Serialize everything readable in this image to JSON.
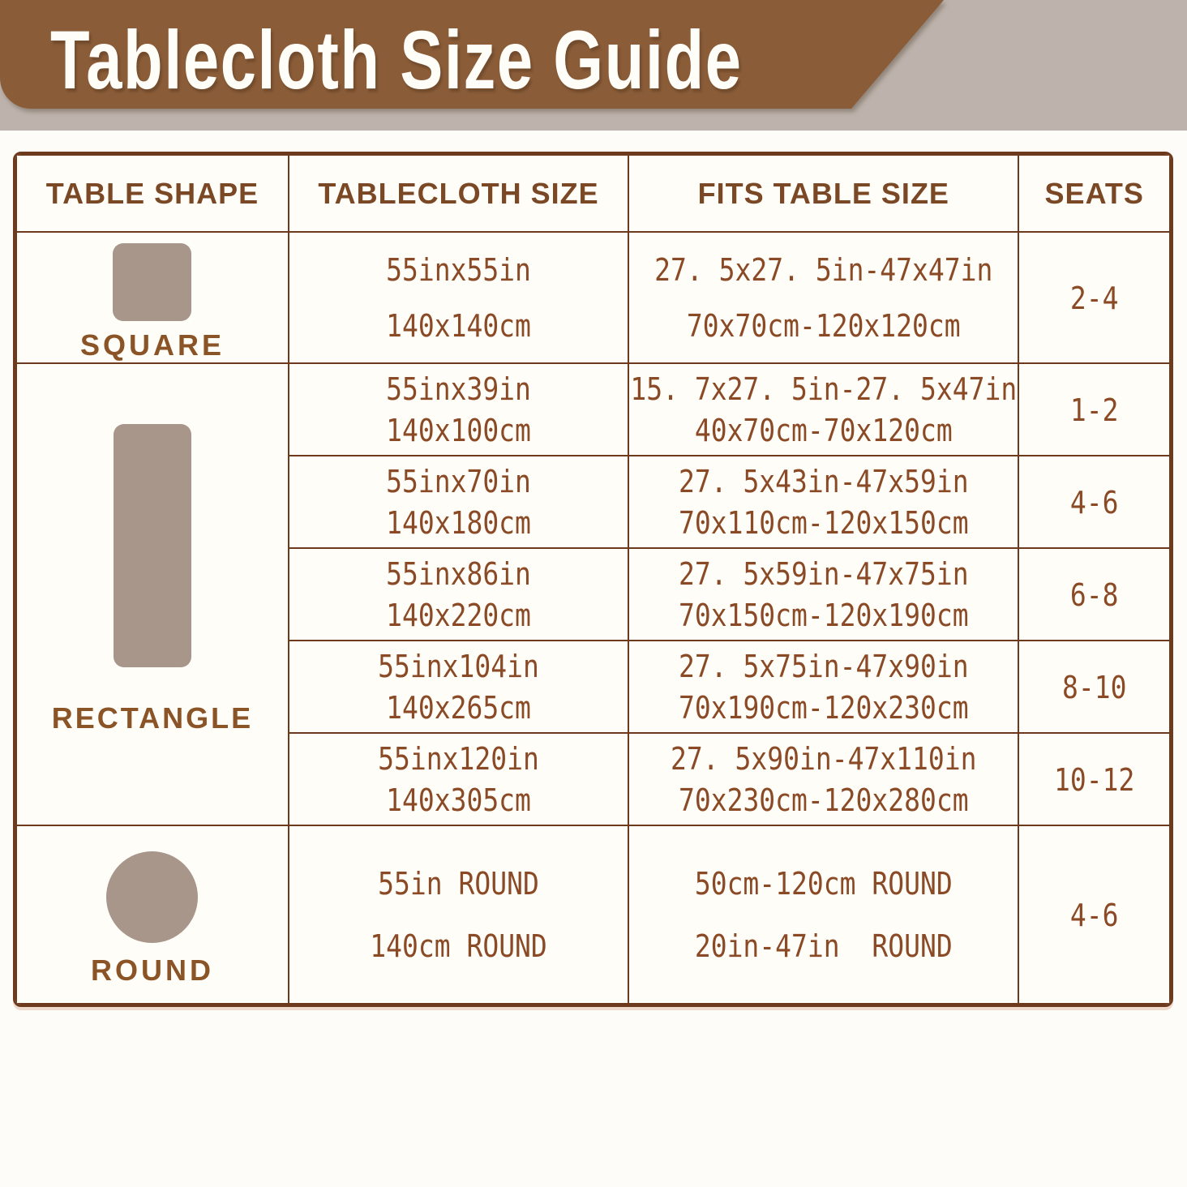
{
  "title": "Tablecloth Size Guide",
  "colors": {
    "banner_brown": "#8a5c38",
    "band_gray": "#bdb3ac",
    "border_brown": "#6e3a1d",
    "text_brown": "#8b4a26",
    "header_text_brown": "#7b4826",
    "shape_fill_taupe": "#a79689",
    "title_white": "#fffdf8"
  },
  "table": {
    "headers": [
      "TABLE SHAPE",
      "TABLECLOTH SIZE",
      "FITS TABLE SIZE",
      "SEATS"
    ],
    "groups": [
      {
        "shape": "SQUARE",
        "rows": [
          {
            "cloth": [
              "55inx55in",
              "140x140cm"
            ],
            "fits": [
              "27. 5x27. 5in-47x47in",
              "70x70cm-120x120cm"
            ],
            "seats": "2-4"
          }
        ]
      },
      {
        "shape": "RECTANGLE",
        "rows": [
          {
            "cloth": [
              "55inx39in",
              "140x100cm"
            ],
            "fits": [
              "15. 7x27. 5in-27. 5x47in",
              "40x70cm-70x120cm"
            ],
            "seats": "1-2"
          },
          {
            "cloth": [
              "55inx70in",
              "140x180cm"
            ],
            "fits": [
              "27. 5x43in-47x59in",
              "70x110cm-120x150cm"
            ],
            "seats": "4-6"
          },
          {
            "cloth": [
              "55inx86in",
              "140x220cm"
            ],
            "fits": [
              "27. 5x59in-47x75in",
              "70x150cm-120x190cm"
            ],
            "seats": "6-8"
          },
          {
            "cloth": [
              "55inx104in",
              "140x265cm"
            ],
            "fits": [
              "27. 5x75in-47x90in",
              "70x190cm-120x230cm"
            ],
            "seats": "8-10"
          },
          {
            "cloth": [
              "55inx120in",
              "140x305cm"
            ],
            "fits": [
              "27. 5x90in-47x110in",
              "70x230cm-120x280cm"
            ],
            "seats": "10-12"
          }
        ]
      },
      {
        "shape": "ROUND",
        "rows": [
          {
            "cloth": [
              "55in ROUND",
              "140cm ROUND"
            ],
            "fits": [
              "50cm-120cm ROUND",
              "20in-47in  ROUND"
            ],
            "seats": "4-6"
          }
        ]
      }
    ]
  }
}
